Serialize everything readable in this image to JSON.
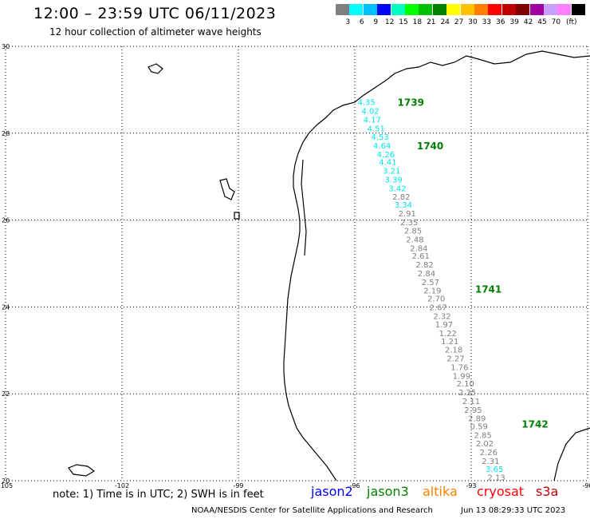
{
  "title": "12:00 – 23:59 UTC 06/11/2023",
  "subtitle": "12 hour collection of altimeter wave heights",
  "legend": {
    "unit": "(ft)",
    "items": [
      {
        "label": "",
        "color": "#7f7f7f"
      },
      {
        "label": "3",
        "color": "#00ffff"
      },
      {
        "label": "6",
        "color": "#00bfff"
      },
      {
        "label": "9",
        "color": "#0000ff"
      },
      {
        "label": "12",
        "color": "#00ffbf"
      },
      {
        "label": "15",
        "color": "#00ff00"
      },
      {
        "label": "18",
        "color": "#00c000"
      },
      {
        "label": "21",
        "color": "#008000"
      },
      {
        "label": "24",
        "color": "#ffff00"
      },
      {
        "label": "27",
        "color": "#ffc000"
      },
      {
        "label": "30",
        "color": "#ff8000"
      },
      {
        "label": "33",
        "color": "#ff0000"
      },
      {
        "label": "36",
        "color": "#c00000"
      },
      {
        "label": "39",
        "color": "#800000"
      },
      {
        "label": "42",
        "color": "#a000a0"
      },
      {
        "label": "45",
        "color": "#c8a0ff"
      },
      {
        "label": "70",
        "color": "#ff80ff"
      },
      {
        "label": "",
        "color": "#000000"
      }
    ]
  },
  "axes": {
    "lat_labels": [
      "30",
      "28",
      "26",
      "24",
      "22",
      "20"
    ],
    "lon_labels": [
      "-105",
      "-102",
      "-99",
      "-96",
      "-93",
      "-90"
    ]
  },
  "track": {
    "times": [
      {
        "label": "1739",
        "lat": 28.7,
        "lon": -94.9
      },
      {
        "label": "1740",
        "lat": 27.7,
        "lon": -94.4
      },
      {
        "label": "1741",
        "lat": 24.4,
        "lon": -92.9
      },
      {
        "label": "1742",
        "lat": 21.3,
        "lon": -91.7
      }
    ],
    "points": [
      {
        "value": "4.35",
        "lat": 28.72,
        "lon": -95.7,
        "color": "#00e5ee"
      },
      {
        "value": "4.02",
        "lat": 28.52,
        "lon": -95.6,
        "color": "#00e5ee"
      },
      {
        "value": "4.17",
        "lat": 28.32,
        "lon": -95.55,
        "color": "#00e5ee"
      },
      {
        "value": "4.51",
        "lat": 28.12,
        "lon": -95.45,
        "color": "#00e5ee"
      },
      {
        "value": "4.53",
        "lat": 27.92,
        "lon": -95.35,
        "color": "#00e5ee"
      },
      {
        "value": "4.64",
        "lat": 27.72,
        "lon": -95.3,
        "color": "#00e5ee"
      },
      {
        "value": "4.26",
        "lat": 27.52,
        "lon": -95.2,
        "color": "#00e5ee"
      },
      {
        "value": "4.41",
        "lat": 27.34,
        "lon": -95.15,
        "color": "#00e5ee"
      },
      {
        "value": "3.21",
        "lat": 27.14,
        "lon": -95.05,
        "color": "#00e5ee"
      },
      {
        "value": "3.39",
        "lat": 26.94,
        "lon": -95.0,
        "color": "#00e5ee"
      },
      {
        "value": "3.42",
        "lat": 26.74,
        "lon": -94.9,
        "color": "#00e5ee"
      },
      {
        "value": "2.82",
        "lat": 26.54,
        "lon": -94.8,
        "color": "#7f7f7f"
      },
      {
        "value": "3.34",
        "lat": 26.36,
        "lon": -94.75,
        "color": "#00e5ee"
      },
      {
        "value": "2.91",
        "lat": 26.16,
        "lon": -94.65,
        "color": "#7f7f7f"
      },
      {
        "value": "2.35",
        "lat": 25.96,
        "lon": -94.6,
        "color": "#7f7f7f"
      },
      {
        "value": "2.85",
        "lat": 25.76,
        "lon": -94.5,
        "color": "#7f7f7f"
      },
      {
        "value": "2.48",
        "lat": 25.56,
        "lon": -94.45,
        "color": "#7f7f7f"
      },
      {
        "value": "2.84",
        "lat": 25.36,
        "lon": -94.35,
        "color": "#7f7f7f"
      },
      {
        "value": "2.61",
        "lat": 25.18,
        "lon": -94.3,
        "color": "#7f7f7f"
      },
      {
        "value": "2.82",
        "lat": 24.98,
        "lon": -94.2,
        "color": "#7f7f7f"
      },
      {
        "value": "2.84",
        "lat": 24.78,
        "lon": -94.15,
        "color": "#7f7f7f"
      },
      {
        "value": "2.57",
        "lat": 24.58,
        "lon": -94.05,
        "color": "#7f7f7f"
      },
      {
        "value": "2.19",
        "lat": 24.38,
        "lon": -94.0,
        "color": "#7f7f7f"
      },
      {
        "value": "2.70",
        "lat": 24.2,
        "lon": -93.9,
        "color": "#7f7f7f"
      },
      {
        "value": "2.67",
        "lat": 24.0,
        "lon": -93.85,
        "color": "#7f7f7f"
      },
      {
        "value": "2.32",
        "lat": 23.8,
        "lon": -93.75,
        "color": "#7f7f7f"
      },
      {
        "value": "1.97",
        "lat": 23.6,
        "lon": -93.7,
        "color": "#7f7f7f"
      },
      {
        "value": "1.22",
        "lat": 23.4,
        "lon": -93.6,
        "color": "#7f7f7f"
      },
      {
        "value": "1.21",
        "lat": 23.22,
        "lon": -93.55,
        "color": "#7f7f7f"
      },
      {
        "value": "2.18",
        "lat": 23.02,
        "lon": -93.45,
        "color": "#7f7f7f"
      },
      {
        "value": "2.27",
        "lat": 22.82,
        "lon": -93.4,
        "color": "#7f7f7f"
      },
      {
        "value": "1.76",
        "lat": 22.62,
        "lon": -93.3,
        "color": "#7f7f7f"
      },
      {
        "value": "1.99",
        "lat": 22.42,
        "lon": -93.25,
        "color": "#7f7f7f"
      },
      {
        "value": "2.10",
        "lat": 22.24,
        "lon": -93.15,
        "color": "#7f7f7f"
      },
      {
        "value": "2.35",
        "lat": 22.04,
        "lon": -93.1,
        "color": "#7f7f7f"
      },
      {
        "value": "2.11",
        "lat": 21.84,
        "lon": -93.0,
        "color": "#7f7f7f"
      },
      {
        "value": "2.95",
        "lat": 21.64,
        "lon": -92.95,
        "color": "#7f7f7f"
      },
      {
        "value": "2.89",
        "lat": 21.44,
        "lon": -92.85,
        "color": "#7f7f7f"
      },
      {
        "value": "0.59",
        "lat": 21.26,
        "lon": -92.8,
        "color": "#7f7f7f"
      },
      {
        "value": "2.85",
        "lat": 21.06,
        "lon": -92.7,
        "color": "#7f7f7f"
      },
      {
        "value": "2.02",
        "lat": 20.86,
        "lon": -92.65,
        "color": "#7f7f7f"
      },
      {
        "value": "2.26",
        "lat": 20.66,
        "lon": -92.55,
        "color": "#7f7f7f"
      },
      {
        "value": "2.31",
        "lat": 20.46,
        "lon": -92.5,
        "color": "#7f7f7f"
      },
      {
        "value": "3.65",
        "lat": 20.28,
        "lon": -92.4,
        "color": "#00e5ee"
      },
      {
        "value": "2.13",
        "lat": 20.08,
        "lon": -92.35,
        "color": "#7f7f7f"
      }
    ]
  },
  "footer": {
    "note": "note: 1) Time is in UTC; 2) SWH is in feet",
    "satellites": [
      {
        "name": "jason2",
        "color": "#0000ff"
      },
      {
        "name": "jason3",
        "color": "#008000"
      },
      {
        "name": "altika",
        "color": "#ff8000"
      },
      {
        "name": "cryosat",
        "color": "#ff0000"
      },
      {
        "name": "s3a",
        "color": "#c00000"
      }
    ],
    "credit": "NOAA/NESDIS Center for Satellite Applications and Research",
    "timestamp": "Jun 13 08:29:33 UTC 2023"
  }
}
